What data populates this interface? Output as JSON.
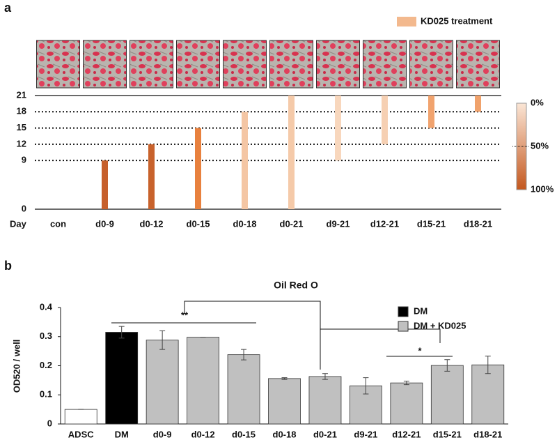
{
  "chart_data": [
    {
      "type": "range-bar",
      "panel": "a",
      "y_label": "Day",
      "legend": {
        "name": "KD025 treatment",
        "color": "#f3b98e"
      },
      "categories": [
        "con",
        "d0-9",
        "d0-12",
        "d0-15",
        "d0-18",
        "d0-21",
        "d9-21",
        "d12-21",
        "d15-21",
        "d18-21"
      ],
      "starts": [
        null,
        0,
        0,
        0,
        0,
        0,
        9,
        12,
        15,
        18
      ],
      "ends": [
        null,
        9,
        12,
        15,
        18,
        21,
        21,
        21,
        21,
        21
      ],
      "colors": [
        null,
        "#c65f2b",
        "#c8622c",
        "#e8813e",
        "#f4c6a4",
        "#f5caa9",
        "#f8d7bd",
        "#f6d0b3",
        "#f1a36e",
        "#f0a26c"
      ],
      "ylim": [
        0,
        21
      ],
      "yticks": [
        0,
        9,
        12,
        15,
        18,
        21
      ],
      "colorbar": {
        "ticks": [
          {
            "value": 0,
            "label": "0%"
          },
          {
            "value": 50,
            "label": "50%"
          },
          {
            "value": 100,
            "label": "100%"
          }
        ],
        "colors": [
          "#fbe6d6",
          "#c4581f"
        ]
      }
    },
    {
      "type": "bar",
      "panel": "b",
      "title": "Oil Red O",
      "y_label": "OD520 / well",
      "categories": [
        "ADSC",
        "DM",
        "d0-9",
        "d0-12",
        "d0-15",
        "d0-18",
        "d0-21",
        "d9-21",
        "d12-21",
        "d15-21",
        "d18-21"
      ],
      "values": [
        0.05,
        0.315,
        0.288,
        0.298,
        0.238,
        0.156,
        0.163,
        0.131,
        0.141,
        0.201,
        0.203
      ],
      "errors": [
        0,
        0.02,
        0.032,
        0,
        0.018,
        0.003,
        0.01,
        0.028,
        0.006,
        0.02,
        0.03
      ],
      "colors": [
        "#ffffff",
        "#000000",
        "#c0c0c0",
        "#c0c0c0",
        "#c0c0c0",
        "#c0c0c0",
        "#c0c0c0",
        "#c0c0c0",
        "#c0c0c0",
        "#c0c0c0",
        "#c0c0c0"
      ],
      "legend": [
        {
          "name": "DM",
          "color": "#000000"
        },
        {
          "name": "DM + KD025",
          "color": "#c0c0c0"
        }
      ],
      "annotations": [
        "**",
        "*"
      ],
      "ylim": [
        0,
        0.4
      ],
      "yticks": [
        0,
        0.1,
        0.2,
        0.3,
        0.4
      ]
    }
  ]
}
